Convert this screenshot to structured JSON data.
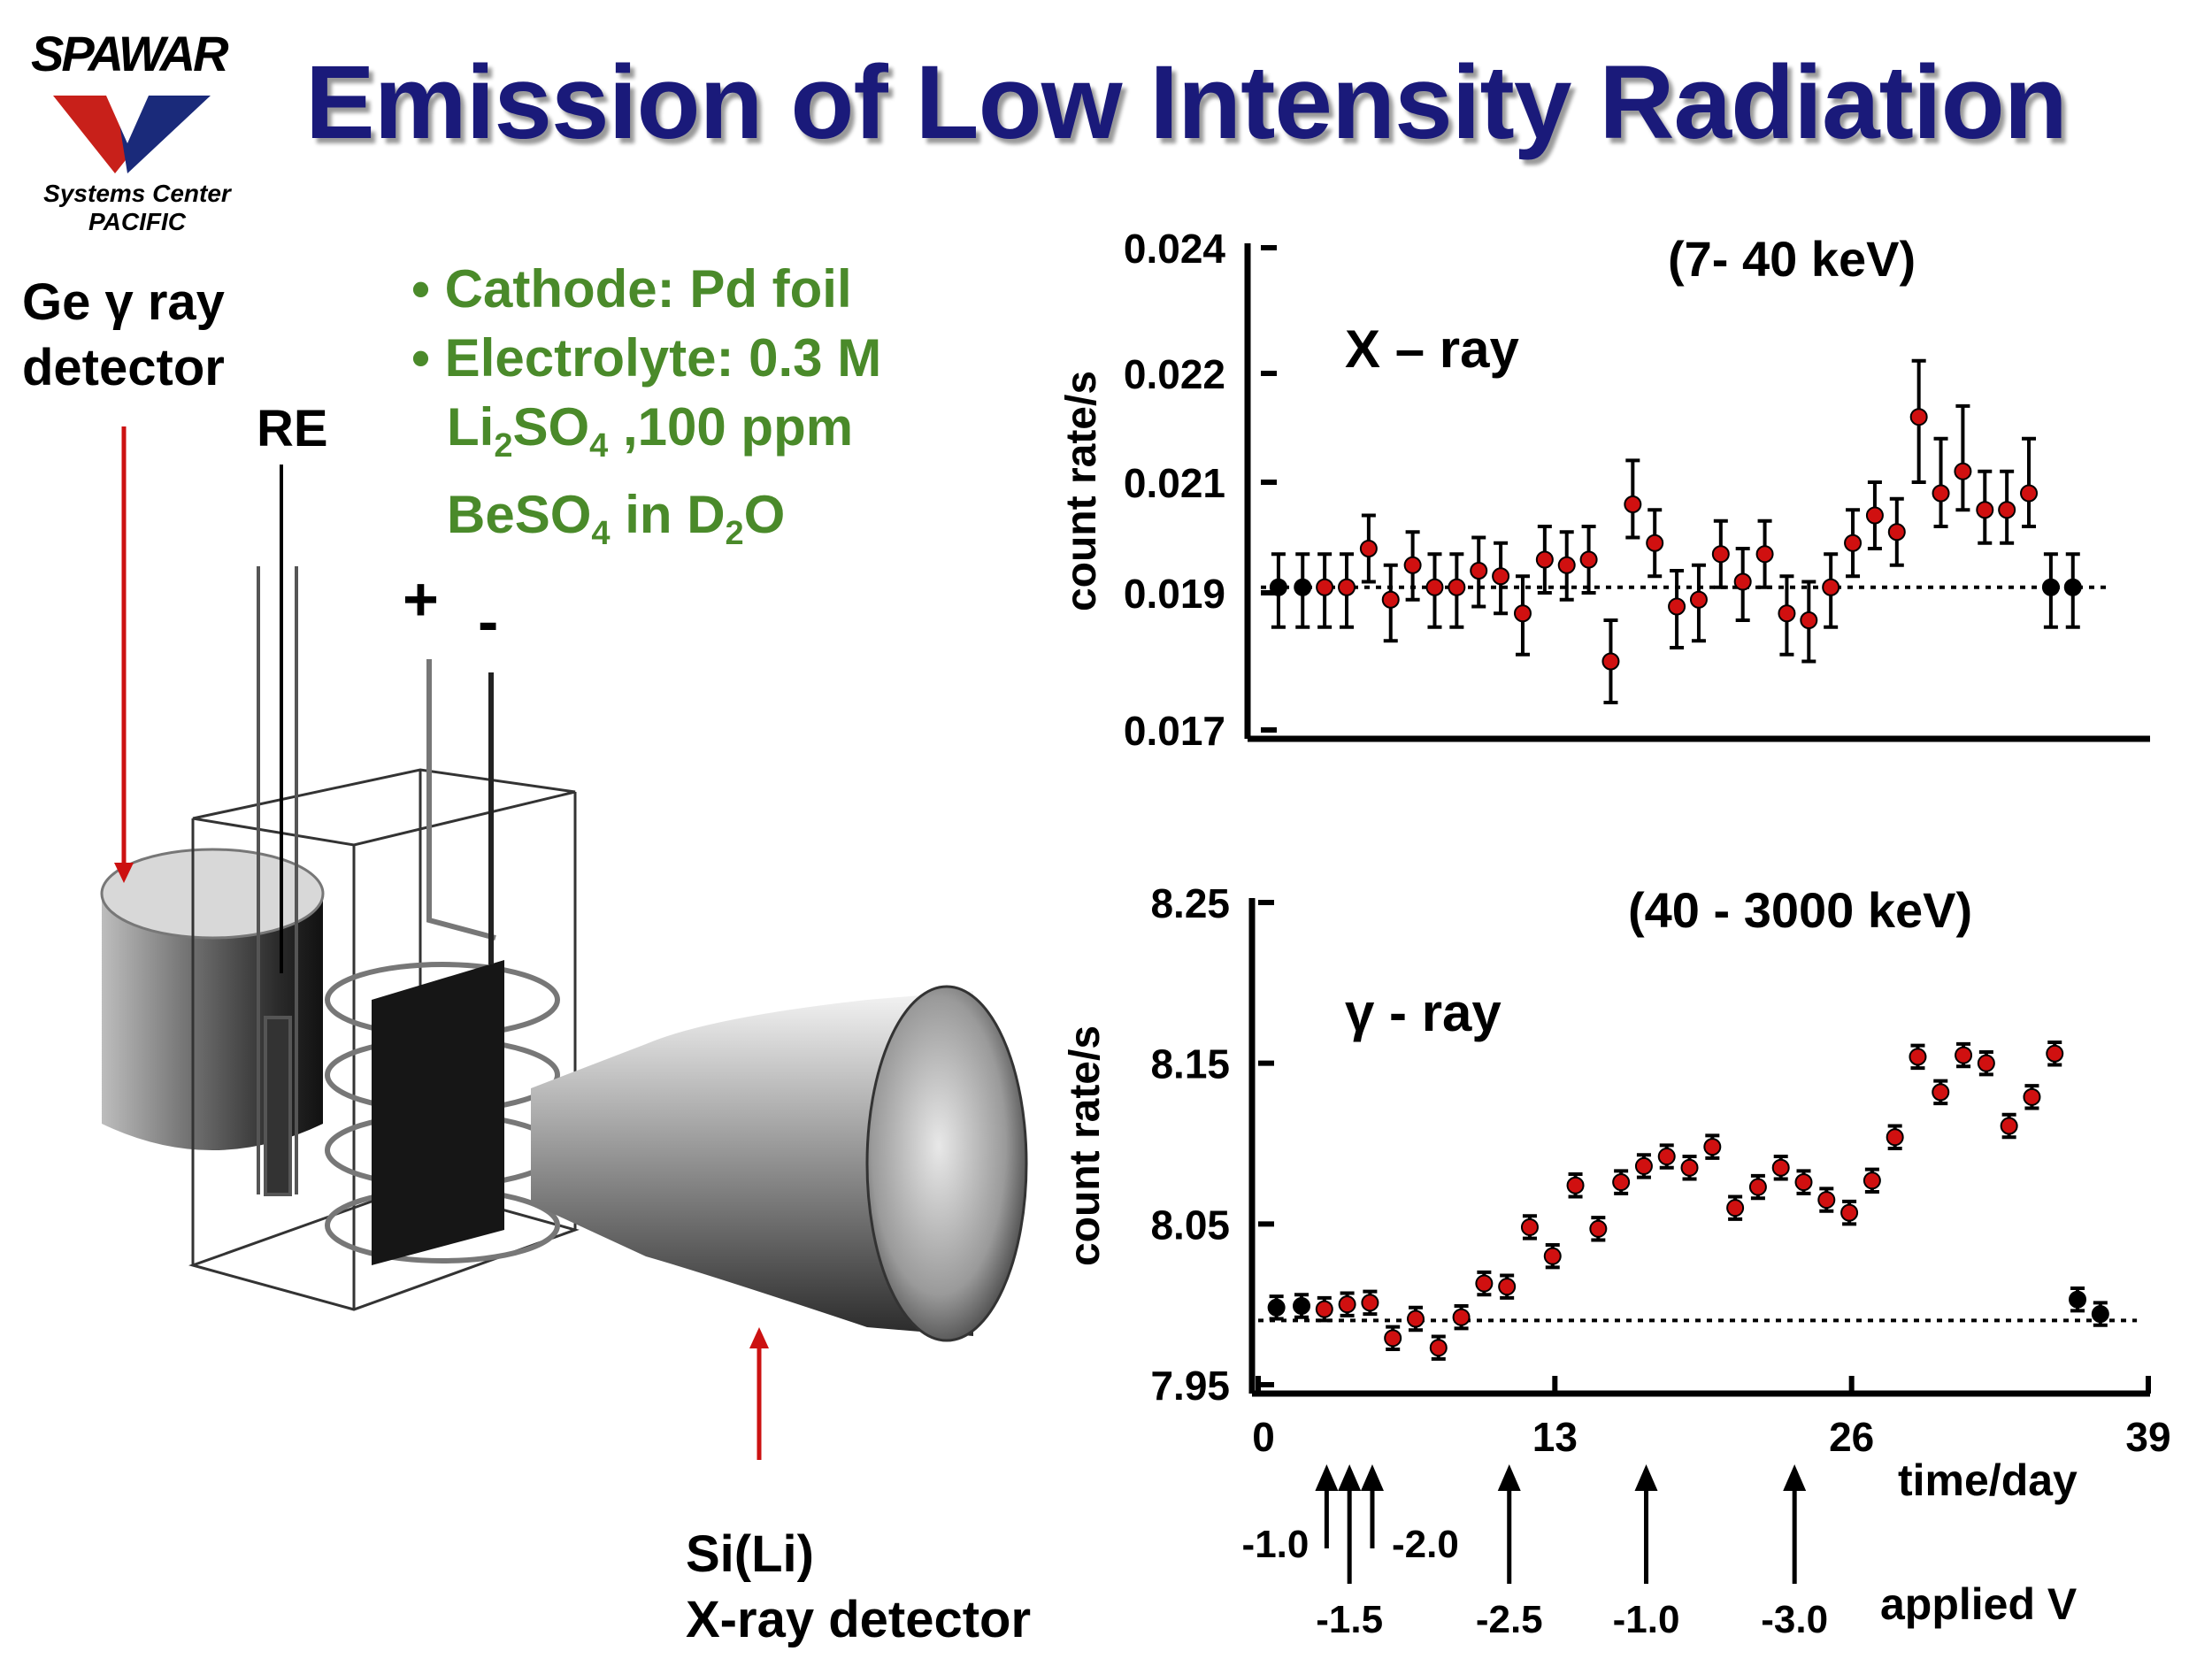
{
  "header": {
    "title": "Emission of Low Intensity Radiation",
    "logo": {
      "name": "SPAWAR",
      "sub1": "Systems Center",
      "sub2": "PACIFIC"
    }
  },
  "labels": {
    "ge_detector_line1": "Ge γ ray",
    "ge_detector_line2": "detector",
    "re": "RE",
    "plus": "+",
    "minus": "-",
    "si_detector_line1": "Si(Li)",
    "si_detector_line2": "X-ray detector"
  },
  "conditions": {
    "cathode": "• Cathode:  Pd foil",
    "electrolyte": "• Electrolyte: 0.3 M",
    "li": "Li",
    "li_sub": "2",
    "so4": "SO",
    "so4_sub": "4",
    "ppm": " ,100 ppm",
    "beso": "BeSO",
    "beso_sub": "4",
    "in_d": " in D",
    "d_sub": "2",
    "o": "O"
  },
  "colors": {
    "title": "#1a1a7a",
    "green_text": "#4a8a2a",
    "red_arrow": "#cc1111",
    "red_point": "#d01010",
    "black_point": "#000000"
  },
  "chart_data": [
    {
      "type": "scatter",
      "title": "(7- 40 keV)",
      "annotation": "X – ray",
      "ylabel": "count rate/s",
      "yticks": [
        "0.024",
        "0.022",
        "0.021",
        "0.019",
        "0.017"
      ],
      "ytick_values": [
        0.024,
        0.022,
        0.021,
        0.019,
        0.017
      ],
      "xlim": [
        0,
        39
      ],
      "baseline": 0.0191,
      "points": [
        {
          "x": 0.8,
          "y": 0.0191,
          "err": 0.0006,
          "c": "k"
        },
        {
          "x": 1.9,
          "y": 0.0191,
          "err": 0.0006,
          "c": "k"
        },
        {
          "x": 2.9,
          "y": 0.0191,
          "err": 0.0006,
          "c": "r"
        },
        {
          "x": 3.9,
          "y": 0.0191,
          "err": 0.0006,
          "c": "r"
        },
        {
          "x": 4.9,
          "y": 0.0198,
          "err": 0.0006,
          "c": "r"
        },
        {
          "x": 5.9,
          "y": 0.0189,
          "err": 0.0006,
          "c": "r"
        },
        {
          "x": 6.9,
          "y": 0.0195,
          "err": 0.0006,
          "c": "r"
        },
        {
          "x": 7.9,
          "y": 0.0191,
          "err": 0.0006,
          "c": "r"
        },
        {
          "x": 8.9,
          "y": 0.0191,
          "err": 0.0006,
          "c": "r"
        },
        {
          "x": 9.9,
          "y": 0.0194,
          "err": 0.0006,
          "c": "r"
        },
        {
          "x": 10.9,
          "y": 0.0193,
          "err": 0.0006,
          "c": "r"
        },
        {
          "x": 11.9,
          "y": 0.0187,
          "err": 0.0006,
          "c": "r"
        },
        {
          "x": 12.9,
          "y": 0.0196,
          "err": 0.0006,
          "c": "r"
        },
        {
          "x": 13.9,
          "y": 0.0195,
          "err": 0.0006,
          "c": "r"
        },
        {
          "x": 14.9,
          "y": 0.0196,
          "err": 0.0006,
          "c": "r"
        },
        {
          "x": 15.9,
          "y": 0.018,
          "err": 0.0006,
          "c": "r"
        },
        {
          "x": 16.9,
          "y": 0.0206,
          "err": 0.0006,
          "c": "r"
        },
        {
          "x": 17.9,
          "y": 0.0199,
          "err": 0.0006,
          "c": "r"
        },
        {
          "x": 18.9,
          "y": 0.0188,
          "err": 0.0006,
          "c": "r"
        },
        {
          "x": 19.9,
          "y": 0.0189,
          "err": 0.0006,
          "c": "r"
        },
        {
          "x": 20.9,
          "y": 0.0197,
          "err": 0.0006,
          "c": "r"
        },
        {
          "x": 21.9,
          "y": 0.0192,
          "err": 0.0006,
          "c": "r"
        },
        {
          "x": 22.9,
          "y": 0.0197,
          "err": 0.0006,
          "c": "r"
        },
        {
          "x": 23.9,
          "y": 0.0187,
          "err": 0.0006,
          "c": "r"
        },
        {
          "x": 24.9,
          "y": 0.0186,
          "err": 0.0006,
          "c": "r"
        },
        {
          "x": 25.9,
          "y": 0.0191,
          "err": 0.0006,
          "c": "r"
        },
        {
          "x": 26.9,
          "y": 0.0199,
          "err": 0.0006,
          "c": "r"
        },
        {
          "x": 27.9,
          "y": 0.0204,
          "err": 0.0006,
          "c": "r"
        },
        {
          "x": 28.9,
          "y": 0.0201,
          "err": 0.0006,
          "c": "r"
        },
        {
          "x": 29.9,
          "y": 0.0216,
          "err": 0.0006,
          "c": "r"
        },
        {
          "x": 30.9,
          "y": 0.0208,
          "err": 0.0006,
          "c": "r"
        },
        {
          "x": 31.9,
          "y": 0.0211,
          "err": 0.0006,
          "c": "r"
        },
        {
          "x": 32.9,
          "y": 0.0205,
          "err": 0.0006,
          "c": "r"
        },
        {
          "x": 33.9,
          "y": 0.0205,
          "err": 0.0006,
          "c": "r"
        },
        {
          "x": 34.9,
          "y": 0.0208,
          "err": 0.0006,
          "c": "r"
        },
        {
          "x": 35.9,
          "y": 0.0191,
          "err": 0.0006,
          "c": "k"
        },
        {
          "x": 36.9,
          "y": 0.0191,
          "err": 0.0006,
          "c": "k"
        }
      ]
    },
    {
      "type": "scatter",
      "title": "(40 - 3000 keV)",
      "annotation": "γ - ray",
      "ylabel": "count rate/s",
      "xlabel": "time/day",
      "yticks": [
        "8.25",
        "8.15",
        "8.05",
        "7.95"
      ],
      "ytick_values": [
        8.25,
        8.15,
        8.05,
        7.95
      ],
      "xticks": [
        "0",
        "13",
        "26",
        "39"
      ],
      "xtick_values": [
        0,
        13,
        26,
        39
      ],
      "ylim": [
        7.95,
        8.25
      ],
      "xlim": [
        0,
        39
      ],
      "baseline": 7.99,
      "points": [
        {
          "x": 0.8,
          "y": 7.998,
          "err": 0.007,
          "c": "k"
        },
        {
          "x": 1.9,
          "y": 7.999,
          "err": 0.007,
          "c": "k"
        },
        {
          "x": 2.9,
          "y": 7.997,
          "err": 0.007,
          "c": "r"
        },
        {
          "x": 3.9,
          "y": 8.0,
          "err": 0.007,
          "c": "r"
        },
        {
          "x": 4.9,
          "y": 8.001,
          "err": 0.007,
          "c": "r"
        },
        {
          "x": 5.9,
          "y": 7.979,
          "err": 0.007,
          "c": "r"
        },
        {
          "x": 6.9,
          "y": 7.991,
          "err": 0.007,
          "c": "r"
        },
        {
          "x": 7.9,
          "y": 7.973,
          "err": 0.007,
          "c": "r"
        },
        {
          "x": 8.9,
          "y": 7.992,
          "err": 0.007,
          "c": "r"
        },
        {
          "x": 9.9,
          "y": 8.013,
          "err": 0.007,
          "c": "r"
        },
        {
          "x": 10.9,
          "y": 8.011,
          "err": 0.007,
          "c": "r"
        },
        {
          "x": 11.9,
          "y": 8.048,
          "err": 0.007,
          "c": "r"
        },
        {
          "x": 12.9,
          "y": 8.03,
          "err": 0.007,
          "c": "r"
        },
        {
          "x": 13.9,
          "y": 8.074,
          "err": 0.007,
          "c": "r"
        },
        {
          "x": 14.9,
          "y": 8.047,
          "err": 0.007,
          "c": "r"
        },
        {
          "x": 15.9,
          "y": 8.076,
          "err": 0.007,
          "c": "r"
        },
        {
          "x": 16.9,
          "y": 8.086,
          "err": 0.007,
          "c": "r"
        },
        {
          "x": 17.9,
          "y": 8.092,
          "err": 0.007,
          "c": "r"
        },
        {
          "x": 18.9,
          "y": 8.085,
          "err": 0.007,
          "c": "r"
        },
        {
          "x": 19.9,
          "y": 8.098,
          "err": 0.007,
          "c": "r"
        },
        {
          "x": 20.9,
          "y": 8.06,
          "err": 0.007,
          "c": "r"
        },
        {
          "x": 21.9,
          "y": 8.073,
          "err": 0.007,
          "c": "r"
        },
        {
          "x": 22.9,
          "y": 8.085,
          "err": 0.007,
          "c": "r"
        },
        {
          "x": 23.9,
          "y": 8.076,
          "err": 0.007,
          "c": "r"
        },
        {
          "x": 24.9,
          "y": 8.065,
          "err": 0.007,
          "c": "r"
        },
        {
          "x": 25.9,
          "y": 8.057,
          "err": 0.007,
          "c": "r"
        },
        {
          "x": 26.9,
          "y": 8.077,
          "err": 0.007,
          "c": "r"
        },
        {
          "x": 27.9,
          "y": 8.104,
          "err": 0.007,
          "c": "r"
        },
        {
          "x": 28.9,
          "y": 8.154,
          "err": 0.007,
          "c": "r"
        },
        {
          "x": 29.9,
          "y": 8.132,
          "err": 0.007,
          "c": "r"
        },
        {
          "x": 30.9,
          "y": 8.155,
          "err": 0.007,
          "c": "r"
        },
        {
          "x": 31.9,
          "y": 8.15,
          "err": 0.007,
          "c": "r"
        },
        {
          "x": 32.9,
          "y": 8.111,
          "err": 0.007,
          "c": "r"
        },
        {
          "x": 33.9,
          "y": 8.129,
          "err": 0.007,
          "c": "r"
        },
        {
          "x": 34.9,
          "y": 8.156,
          "err": 0.007,
          "c": "r"
        },
        {
          "x": 35.9,
          "y": 8.003,
          "err": 0.007,
          "c": "k"
        },
        {
          "x": 36.9,
          "y": 7.994,
          "err": 0.007,
          "c": "k"
        }
      ],
      "applied_v_label": "applied V",
      "applied_v": [
        {
          "x": 3.0,
          "label": "-1.0",
          "pos": "upper-left"
        },
        {
          "x": 4.0,
          "label": "-1.5",
          "pos": "lower"
        },
        {
          "x": 5.0,
          "label": "-2.0",
          "pos": "upper-right"
        },
        {
          "x": 11.0,
          "label": "-2.5",
          "pos": "lower"
        },
        {
          "x": 17.0,
          "label": "-1.0",
          "pos": "lower"
        },
        {
          "x": 23.5,
          "label": "-3.0",
          "pos": "lower"
        }
      ]
    }
  ]
}
